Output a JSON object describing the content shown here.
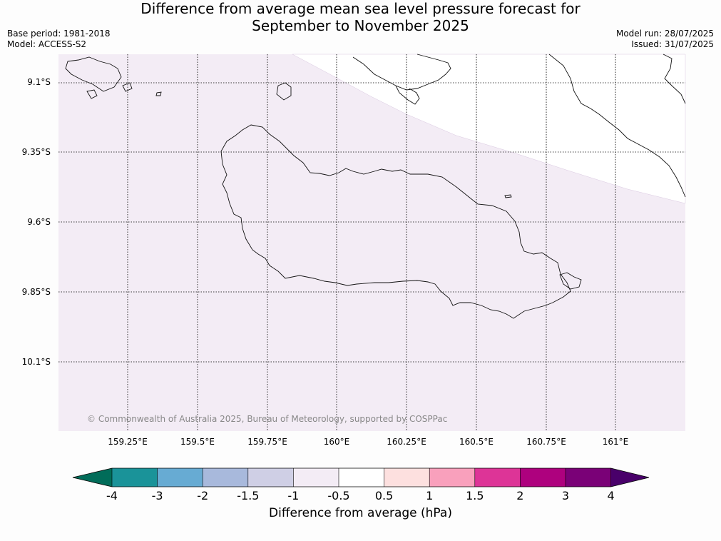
{
  "title_line1": "Difference from average mean sea level pressure forecast for",
  "title_line2": "September to November 2025",
  "base_period": "Base period: 1981-2018",
  "model": "Model: ACCESS-S2",
  "model_run": "Model run: 28/07/2025",
  "issued": "Issued: 31/07/2025",
  "copyright": "© Commonwealth of Australia 2025, Bureau of Meteorology, supported by COSPPac",
  "lat_labels": [
    "9.1°S",
    "9.35°S",
    "9.6°S",
    "9.85°S",
    "10.1°S"
  ],
  "lon_labels": [
    "159.25°E",
    "159.5°E",
    "159.75°E",
    "160°E",
    "160.25°E",
    "160.5°E",
    "160.75°E",
    "161°E"
  ],
  "colorbar": {
    "title": "Difference from average (hPa)",
    "tick_labels": [
      "-4",
      "-3",
      "-2",
      "-1.5",
      "-1",
      "-0.5",
      "0.5",
      "1",
      "1.5",
      "2",
      "3",
      "4"
    ],
    "colors": [
      "#1a9399",
      "#67abd3",
      "#a8b9dc",
      "#cfcfe5",
      "#f3ecf5",
      "#ffffff",
      "#fde0df",
      "#f9a0bc",
      "#dd3497",
      "#ae017e",
      "#7a0177"
    ],
    "low_extend_color": "#016c59",
    "high_extend_color": "#49006a"
  },
  "map_fill": {
    "main_color": "#f3ecf5",
    "main_range": "-1 to -0.5 hPa",
    "ne_color": "#ffffff",
    "ne_range": "-0.5 to 0.5 hPa"
  }
}
